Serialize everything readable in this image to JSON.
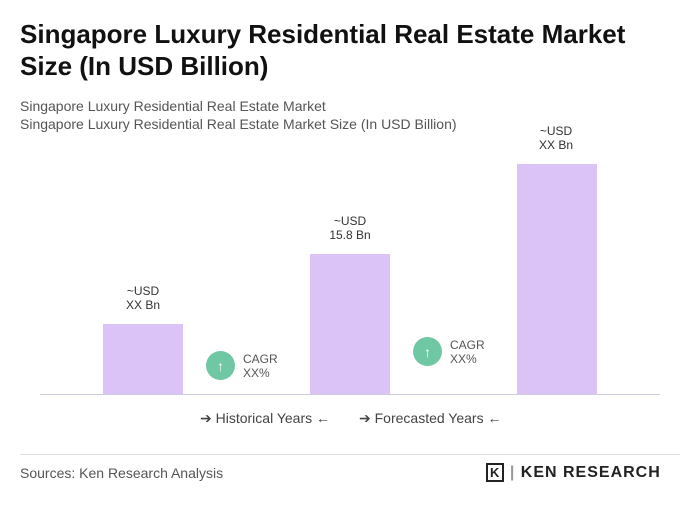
{
  "title": "Singapore Luxury Residential Real Estate Market Size (In USD Billion)",
  "subtitle1": "Singapore Luxury Residential Real Estate Market",
  "subtitle2": "Singapore Luxury Residential Real Estate Market Size (In USD Billion)",
  "chart_data": {
    "type": "bar",
    "categories": [
      "",
      "",
      ""
    ],
    "values": [
      null,
      15.8,
      null
    ],
    "data_labels": [
      "~USD\nXX Bn",
      "~USD\n15.8 Bn",
      "~USD\nXX Bn"
    ],
    "bar_color": "#dcc3f7",
    "annotations": [
      {
        "label": "CAGR",
        "value": "XX%"
      },
      {
        "label": "CAGR",
        "value": "XX%"
      }
    ],
    "legend": [
      "Historical Years",
      "Forecasted Years"
    ],
    "legend_placement": "bottom",
    "grid": false
  },
  "footer": {
    "source": "Sources: Ken Research Analysis",
    "logo": "KEN RESEARCH"
  }
}
